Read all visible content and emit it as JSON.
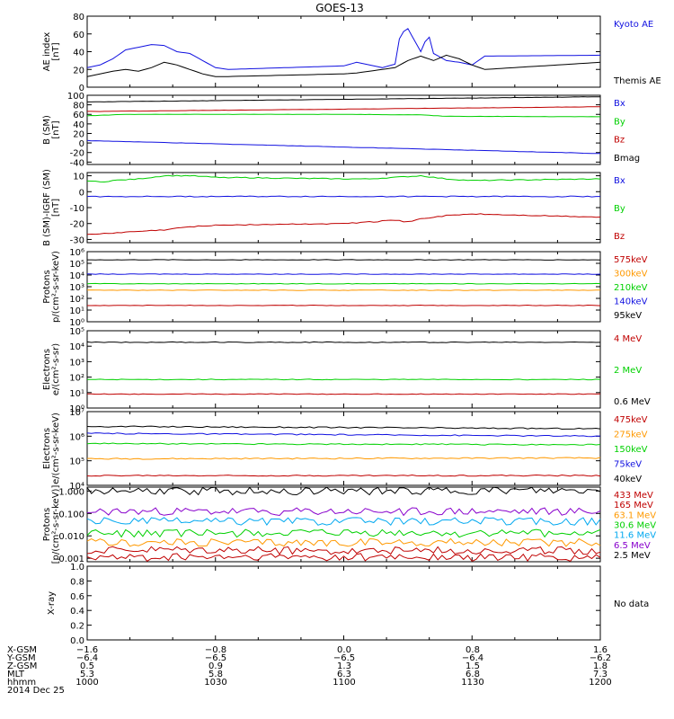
{
  "title": "GOES-13",
  "colors": {
    "black": "#000000",
    "blue": "#1010e0",
    "green": "#00d000",
    "red": "#c00000",
    "orange": "#ff9900",
    "purple": "#8800cc",
    "cyan": "#00a8f0",
    "magenta": "#c000c0"
  },
  "chart_data": [
    {
      "type": "line",
      "id": "ae",
      "ylabel": [
        "AE index",
        "[nT]"
      ],
      "ylim": [
        0,
        80
      ],
      "yticks": [
        "0",
        "20",
        "40",
        "60",
        "80"
      ],
      "log": false,
      "legend": [
        {
          "name": "Kyoto AE",
          "color": "blue"
        },
        {
          "name": "Themis AE",
          "color": "black"
        }
      ],
      "series": [
        {
          "name": "Kyoto AE",
          "color": "blue",
          "x": [
            1000,
            1005,
            1010,
            1015,
            1020,
            1025,
            1030,
            1035,
            1040,
            1045,
            1050,
            1055,
            1100,
            1105,
            1110,
            1115,
            1120,
            1122,
            1125,
            1130,
            1133,
            1135,
            1140,
            1145,
            1150,
            1155,
            1200
          ],
          "values": [
            22,
            25,
            32,
            42,
            45,
            48,
            47,
            40,
            38,
            30,
            22,
            20,
            24,
            28,
            25,
            22,
            26,
            60,
            66,
            40,
            60,
            38,
            30,
            28,
            25,
            35,
            36
          ]
        },
        {
          "name": "Themis AE",
          "color": "black",
          "x": [
            1000,
            1005,
            1010,
            1015,
            1020,
            1025,
            1030,
            1035,
            1040,
            1045,
            1050,
            1055,
            1100,
            1105,
            1110,
            1115,
            1120,
            1125,
            1130,
            1135,
            1140,
            1145,
            1150,
            1155,
            1200
          ],
          "values": [
            12,
            15,
            18,
            20,
            18,
            22,
            28,
            25,
            20,
            15,
            12,
            12,
            15,
            16,
            18,
            20,
            22,
            30,
            35,
            30,
            36,
            32,
            25,
            20,
            28
          ]
        }
      ]
    },
    {
      "type": "line",
      "id": "bsm",
      "ylabel": [
        "B (SM)",
        "[nT]"
      ],
      "ylim": [
        -45,
        100
      ],
      "yticks": [
        "-40",
        "-20",
        "0",
        "20",
        "40",
        "60",
        "80",
        "100"
      ],
      "log": false,
      "legend": [
        {
          "name": "Bx",
          "color": "blue"
        },
        {
          "name": "By",
          "color": "green"
        },
        {
          "name": "Bz",
          "color": "red"
        },
        {
          "name": "Bmag",
          "color": "black"
        }
      ],
      "series": [
        {
          "name": "Bmag",
          "color": "black",
          "x": [
            1000,
            1200
          ],
          "values": [
            86,
            97
          ]
        },
        {
          "name": "Bz",
          "color": "red",
          "x": [
            1000,
            1200
          ],
          "values": [
            66,
            76
          ]
        },
        {
          "name": "By",
          "color": "green",
          "x": [
            1000,
            1015,
            1100,
            1130,
            1140,
            1200
          ],
          "values": [
            57,
            60,
            60,
            59,
            56,
            55
          ]
        },
        {
          "name": "Bx",
          "color": "blue",
          "x": [
            1000,
            1200
          ],
          "values": [
            5,
            -22
          ]
        }
      ]
    },
    {
      "type": "line",
      "id": "bigrf",
      "ylabel": [
        "B (SM)-IGRF (SM)",
        "[nT]"
      ],
      "ylim": [
        -32,
        12
      ],
      "yticks": [
        "-30",
        "-20",
        "-10",
        "0",
        "10"
      ],
      "log": false,
      "legend": [
        {
          "name": "Bx",
          "color": "blue"
        },
        {
          "name": "By",
          "color": "green"
        },
        {
          "name": "Bz",
          "color": "red"
        }
      ],
      "series": [
        {
          "name": "By",
          "color": "green",
          "x": [
            1000,
            1005,
            1010,
            1020,
            1030,
            1040,
            1050,
            1100,
            1110,
            1120,
            1130,
            1140,
            1150,
            1200
          ],
          "values": [
            7,
            6,
            7,
            8,
            10,
            10,
            9,
            8,
            8,
            9,
            10,
            8,
            7,
            8
          ]
        },
        {
          "name": "Bx",
          "color": "blue",
          "x": [
            1000,
            1200
          ],
          "values": [
            -3,
            -3
          ]
        },
        {
          "name": "Bz",
          "color": "red",
          "x": [
            1000,
            1010,
            1020,
            1030,
            1040,
            1050,
            1100,
            1110,
            1120,
            1125,
            1130,
            1140,
            1150,
            1200
          ],
          "values": [
            -27,
            -26,
            -25,
            -24,
            -22,
            -21,
            -20,
            -19,
            -18,
            -19,
            -17,
            -15,
            -14,
            -16
          ]
        }
      ]
    },
    {
      "type": "line",
      "id": "protons1",
      "ylabel": [
        "Protons",
        "p/(cm²-s-sr-keV)"
      ],
      "ylim": [
        1,
        1000000
      ],
      "yticks": [
        "10⁰",
        "10¹",
        "10²",
        "10³",
        "10⁴",
        "10⁵",
        "10⁶"
      ],
      "log": true,
      "legend": [
        {
          "name": "575keV",
          "color": "red"
        },
        {
          "name": "300keV",
          "color": "orange"
        },
        {
          "name": "210keV",
          "color": "green"
        },
        {
          "name": "140keV",
          "color": "blue"
        },
        {
          "name": "95keV",
          "color": "black"
        }
      ],
      "series": [
        {
          "name": "95keV",
          "color": "black",
          "x": [
            1000,
            1200
          ],
          "values": [
            200000,
            200000
          ]
        },
        {
          "name": "140keV",
          "color": "blue",
          "x": [
            1000,
            1200
          ],
          "values": [
            12000,
            12000
          ]
        },
        {
          "name": "210keV",
          "color": "green",
          "x": [
            1000,
            1200
          ],
          "values": [
            1800,
            1800
          ]
        },
        {
          "name": "300keV",
          "color": "orange",
          "x": [
            1000,
            1200
          ],
          "values": [
            500,
            500
          ]
        },
        {
          "name": "575keV",
          "color": "red",
          "x": [
            1000,
            1200
          ],
          "values": [
            25,
            25
          ]
        }
      ]
    },
    {
      "type": "line",
      "id": "electrons1",
      "ylabel": [
        "Electrons",
        "e/(cm²-s-sr)"
      ],
      "ylim": [
        1,
        100000
      ],
      "yticks": [
        "10⁰",
        "10¹",
        "10²",
        "10³",
        "10⁴",
        "10⁵"
      ],
      "log": true,
      "legend": [
        {
          "name": "4 MeV",
          "color": "red"
        },
        {
          "name": "2 MeV",
          "color": "green"
        },
        {
          "name": "0.6 MeV",
          "color": "black"
        }
      ],
      "series": [
        {
          "name": "0.6 MeV",
          "color": "black",
          "x": [
            1000,
            1200
          ],
          "values": [
            18000,
            18000
          ]
        },
        {
          "name": "2 MeV",
          "color": "green",
          "x": [
            1000,
            1200
          ],
          "values": [
            70,
            70
          ]
        },
        {
          "name": "4 MeV",
          "color": "red",
          "x": [
            1000,
            1200
          ],
          "values": [
            8,
            8
          ]
        }
      ]
    },
    {
      "type": "line",
      "id": "electrons2",
      "ylabel": [
        "Electrons",
        "e/(cm²-s-sr-keV)"
      ],
      "ylim": [
        10000,
        10000000
      ],
      "yticks": [
        "10⁴",
        "10⁵",
        "10⁶",
        "10⁷"
      ],
      "log": true,
      "legend": [
        {
          "name": "475keV",
          "color": "red"
        },
        {
          "name": "275keV",
          "color": "orange"
        },
        {
          "name": "150keV",
          "color": "green"
        },
        {
          "name": "75keV",
          "color": "blue"
        },
        {
          "name": "40keV",
          "color": "black"
        }
      ],
      "series": [
        {
          "name": "40keV",
          "color": "black",
          "x": [
            1000,
            1200
          ],
          "values": [
            2500000,
            2000000
          ]
        },
        {
          "name": "75keV",
          "color": "blue",
          "x": [
            1000,
            1200
          ],
          "values": [
            1300000,
            1000000
          ]
        },
        {
          "name": "150keV",
          "color": "green",
          "x": [
            1000,
            1200
          ],
          "values": [
            500000,
            450000
          ]
        },
        {
          "name": "275keV",
          "color": "orange",
          "x": [
            1000,
            1200
          ],
          "values": [
            120000,
            130000
          ]
        },
        {
          "name": "475keV",
          "color": "red",
          "x": [
            1000,
            1200
          ],
          "values": [
            25000,
            25000
          ]
        }
      ]
    },
    {
      "type": "line",
      "id": "protons2",
      "ylabel": [
        "Protons",
        "[p/(cm²-s-sr-keV)]"
      ],
      "ylim": [
        0.0007,
        1.5
      ],
      "yticks": [
        "0.001",
        "0.010",
        "0.100",
        "1.000"
      ],
      "log": true,
      "legend": [
        {
          "name": "433 MeV",
          "color": "red"
        },
        {
          "name": "165 MeV",
          "color": "red"
        },
        {
          "name": "63.1 MeV",
          "color": "orange"
        },
        {
          "name": "30.6 MeV",
          "color": "green"
        },
        {
          "name": "11.6 MeV",
          "color": "cyan"
        },
        {
          "name": "6.5 MeV",
          "color": "purple"
        },
        {
          "name": "2.5 MeV",
          "color": "black"
        }
      ],
      "series": [
        {
          "name": "2.5 MeV",
          "color": "black",
          "x": [
            1000,
            1200
          ],
          "values": [
            1.0,
            1.0
          ]
        },
        {
          "name": "6.5 MeV",
          "color": "purple",
          "x": [
            1000,
            1200
          ],
          "values": [
            0.12,
            0.12
          ]
        },
        {
          "name": "11.6 MeV",
          "color": "cyan",
          "x": [
            1000,
            1200
          ],
          "values": [
            0.045,
            0.045
          ]
        },
        {
          "name": "30.6 MeV",
          "color": "green",
          "x": [
            1000,
            1200
          ],
          "values": [
            0.013,
            0.013
          ]
        },
        {
          "name": "63.1 MeV",
          "color": "orange",
          "x": [
            1000,
            1200
          ],
          "values": [
            0.005,
            0.005
          ]
        },
        {
          "name": "165 MeV",
          "color": "red",
          "x": [
            1000,
            1200
          ],
          "values": [
            0.0022,
            0.0022
          ]
        },
        {
          "name": "433 MeV",
          "color": "red",
          "x": [
            1000,
            1200
          ],
          "values": [
            0.0011,
            0.0011
          ]
        }
      ]
    },
    {
      "type": "line",
      "id": "xray",
      "ylabel": [
        "X-ray"
      ],
      "ylim": [
        0,
        1
      ],
      "yticks": [
        "0.0",
        "0.2",
        "0.4",
        "0.6",
        "0.8",
        "1.0"
      ],
      "log": false,
      "legend": [
        {
          "name": "No data",
          "color": "black"
        }
      ],
      "series": []
    }
  ],
  "footer": {
    "labels": [
      "X-GSM",
      "Y-GSM",
      "Z-GSM",
      "MLT",
      "hhmm",
      "2014 Dec 25"
    ],
    "columns": [
      [
        "−1.6",
        "−6.4",
        "0.5",
        "5.3",
        "1000"
      ],
      [
        "−0.8",
        "−6.5",
        "0.9",
        "5.8",
        "1030"
      ],
      [
        "0.0",
        "−6.5",
        "1.3",
        "6.3",
        "1100"
      ],
      [
        "0.8",
        "−6.4",
        "1.5",
        "6.8",
        "1130"
      ],
      [
        "1.6",
        "−6.2",
        "1.8",
        "7.3",
        "1200"
      ]
    ]
  }
}
